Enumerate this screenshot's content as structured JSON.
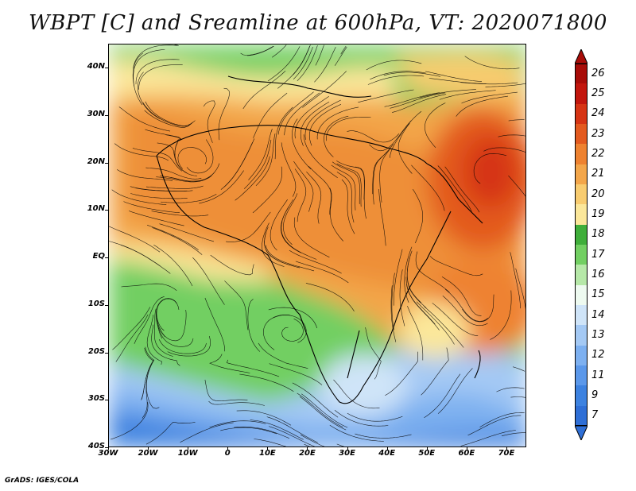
{
  "title": "WBPT [C] and Sreamline at 600hPa, VT: 2020071800",
  "credit": "GrADS: IGES/COLA",
  "map": {
    "lat_labels": [
      "40N",
      "30N",
      "20N",
      "10N",
      "EQ",
      "10S",
      "20S",
      "30S",
      "40S"
    ],
    "lon_labels": [
      "30W",
      "20W",
      "10W",
      "0",
      "10E",
      "20E",
      "30E",
      "40E",
      "50E",
      "60E",
      "70E"
    ],
    "extent": {
      "lon_min": -30,
      "lon_max": 75,
      "lat_min": -40,
      "lat_max": 45
    }
  },
  "colorbar": {
    "labels": [
      "7",
      "9",
      "11",
      "12",
      "13",
      "14",
      "15",
      "16",
      "17",
      "18",
      "19",
      "20",
      "21",
      "22",
      "23",
      "24",
      "25",
      "26"
    ],
    "colors": [
      "#2f6fd6",
      "#3d82e0",
      "#5b98ea",
      "#7db0f0",
      "#a4c9f4",
      "#cfe4f8",
      "#eefaf0",
      "#b6e8a8",
      "#72cf62",
      "#3fae3a",
      "#fbe79a",
      "#f8cc70",
      "#f3a64a",
      "#ee8230",
      "#e35a1f",
      "#d63414",
      "#c2160d",
      "#a80c08"
    ]
  },
  "field": {
    "regions": [
      {
        "name": "saharan-warm",
        "color": "#f2a84c"
      },
      {
        "name": "arabian-hot",
        "color": "#e85a20"
      },
      {
        "name": "southern-ocean-cool",
        "color": "#5b98ea"
      },
      {
        "name": "tropical-green",
        "color": "#72cf62"
      }
    ]
  }
}
